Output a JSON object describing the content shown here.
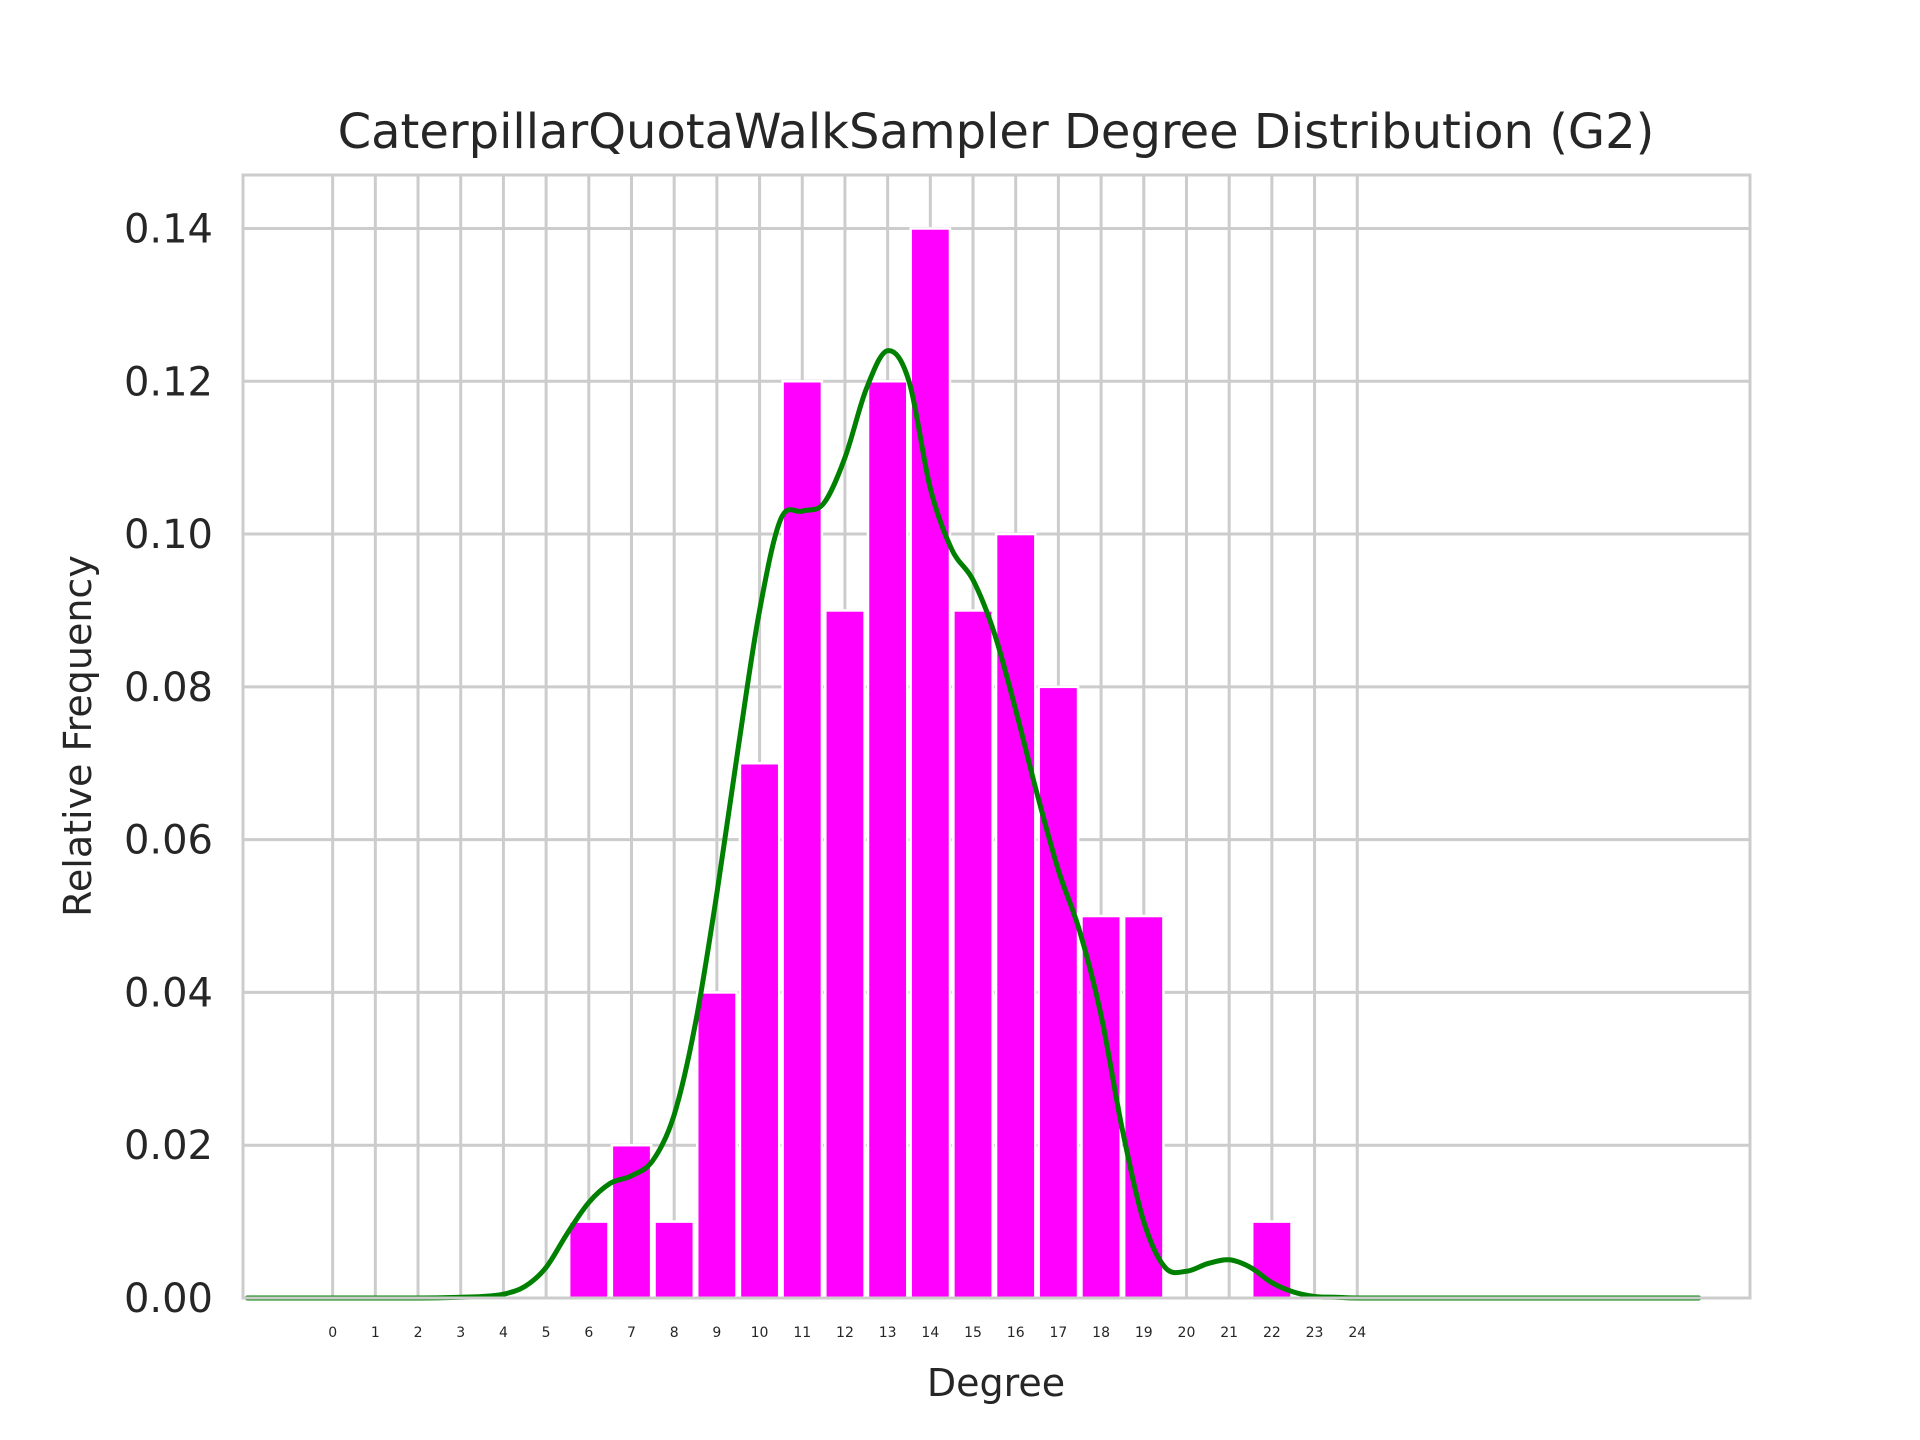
{
  "chart_data": {
    "type": "bar",
    "title": "CaterpillarQuotaWalkSampler Degree Distribution (G2)",
    "xlabel": "Degree",
    "ylabel": "Relative Frequency",
    "x_ticks": [
      0,
      1,
      2,
      3,
      4,
      5,
      6,
      7,
      8,
      9,
      10,
      11,
      12,
      13,
      14,
      15,
      16,
      17,
      18,
      19,
      20,
      21,
      22,
      23,
      24
    ],
    "y_ticks": [
      "0.00",
      "0.02",
      "0.04",
      "0.06",
      "0.08",
      "0.10",
      "0.12",
      "0.14"
    ],
    "xlim": [
      -2.1,
      33.2
    ],
    "ylim": [
      0,
      0.147
    ],
    "grid": true,
    "series": [
      {
        "type": "bar",
        "color": "#ff00ff",
        "x": [
          6,
          7,
          8,
          9,
          10,
          11,
          12,
          13,
          14,
          15,
          16,
          17,
          18,
          19,
          22
        ],
        "values": [
          0.01,
          0.02,
          0.01,
          0.04,
          0.07,
          0.12,
          0.09,
          0.12,
          0.14,
          0.09,
          0.1,
          0.08,
          0.05,
          0.05,
          0.01
        ]
      },
      {
        "type": "line",
        "color": "#008000",
        "x": [
          -2,
          0,
          2,
          3,
          3.5,
          4,
          4.5,
          5,
          5.5,
          6,
          6.5,
          7,
          7.5,
          8,
          8.5,
          9,
          9.5,
          10,
          10.5,
          11,
          11.5,
          12,
          12.5,
          13,
          13.5,
          14,
          14.5,
          15,
          15.5,
          16,
          16.5,
          17,
          17.5,
          18,
          18.5,
          19,
          19.5,
          20,
          20.5,
          21,
          21.5,
          22,
          22.5,
          23,
          23.5,
          24,
          25,
          28,
          32
        ],
        "values": [
          0,
          0,
          0,
          0.0001,
          0.0002,
          0.0005,
          0.0015,
          0.004,
          0.0085,
          0.0125,
          0.015,
          0.016,
          0.018,
          0.024,
          0.036,
          0.053,
          0.072,
          0.09,
          0.102,
          0.103,
          0.104,
          0.11,
          0.119,
          0.124,
          0.12,
          0.106,
          0.098,
          0.094,
          0.087,
          0.077,
          0.066,
          0.056,
          0.048,
          0.037,
          0.022,
          0.01,
          0.004,
          0.0035,
          0.0045,
          0.005,
          0.004,
          0.002,
          0.0008,
          0.0002,
          0.0001,
          0,
          0,
          0,
          0
        ]
      }
    ]
  }
}
